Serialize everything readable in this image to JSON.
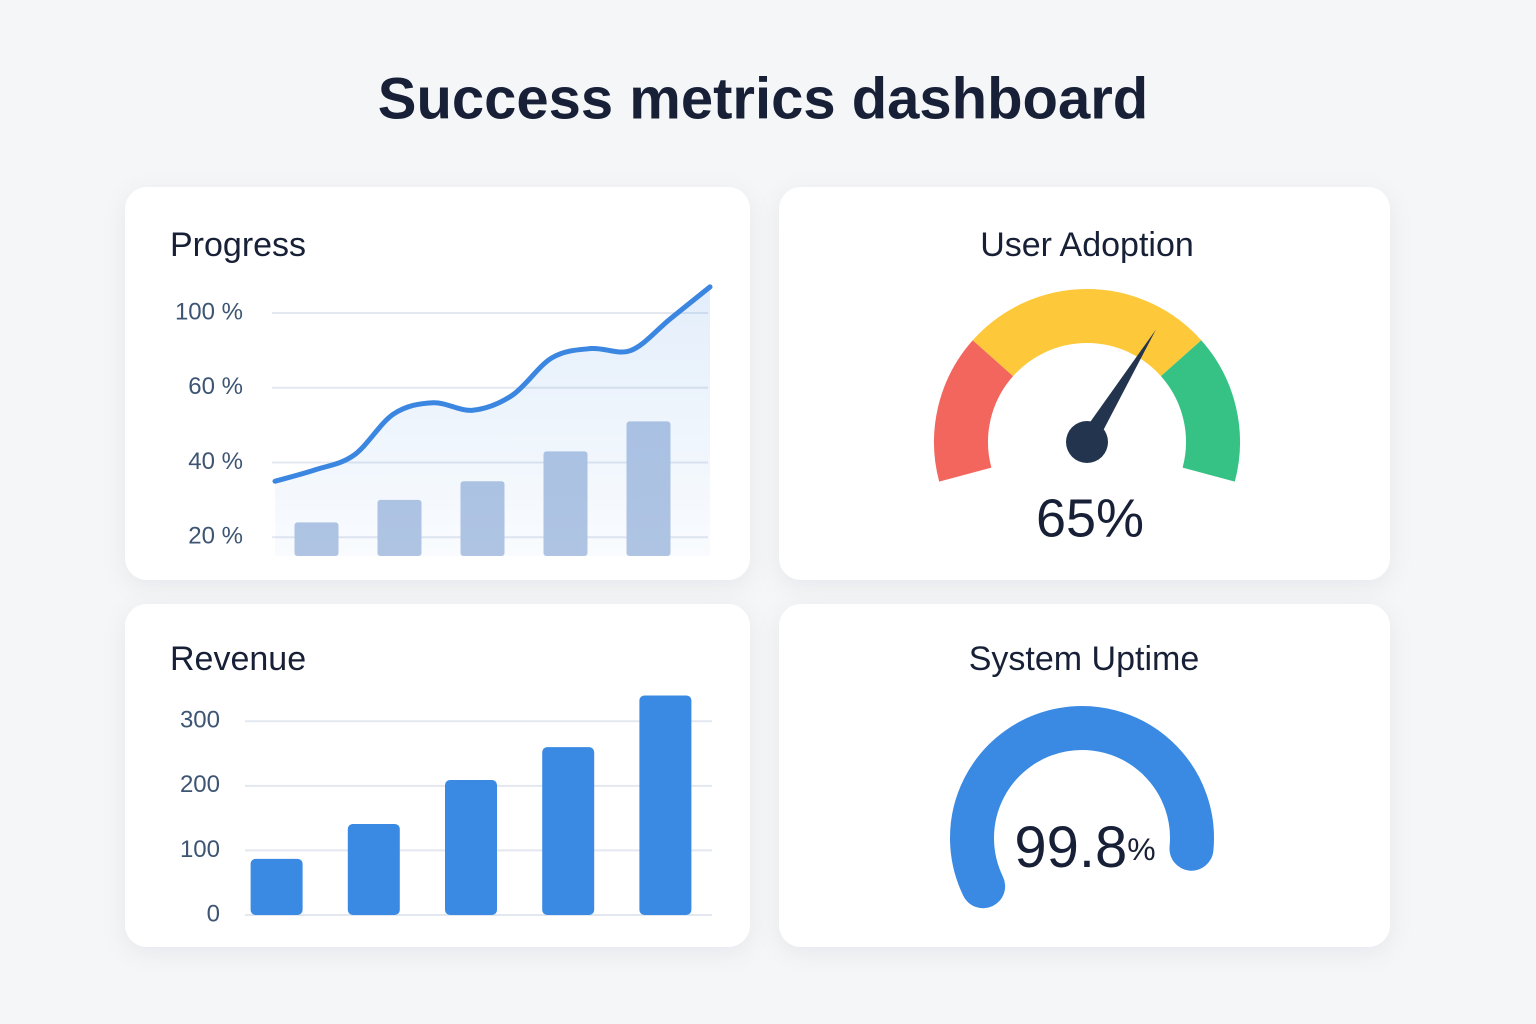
{
  "title": "Success metrics dashboard",
  "chart_data": [
    {
      "type": "line-bar",
      "title": "Progress",
      "scale": "piecewise",
      "grid": true,
      "ylim": [
        15,
        115
      ],
      "yticks": [
        {
          "value": 100,
          "label": "100 %"
        },
        {
          "value": 60,
          "label": "60 %"
        },
        {
          "value": 40,
          "label": "40 %"
        },
        {
          "value": 20,
          "label": "20 %"
        }
      ],
      "series": [
        {
          "kind": "bar",
          "color": "#b3c6e3",
          "values": [
            24,
            30,
            35,
            43,
            51
          ]
        },
        {
          "kind": "line",
          "color": "#3a86e0",
          "values": [
            35,
            38,
            42,
            53,
            56,
            54,
            58,
            76,
            81,
            80,
            97,
            114
          ]
        }
      ]
    },
    {
      "type": "gauge",
      "title": "User Adoption",
      "ylim": [
        0,
        100
      ],
      "value": 65,
      "value_label": "65%",
      "bands": [
        {
          "from": 0,
          "to": 27,
          "color": "#f2665e"
        },
        {
          "from": 27,
          "to": 73,
          "color": "#fdc93a"
        },
        {
          "from": 73,
          "to": 100,
          "color": "#37c285"
        }
      ],
      "needle_color": "#23344f"
    },
    {
      "type": "bar",
      "title": "Revenue",
      "grid": true,
      "ylim": [
        0,
        350
      ],
      "yticks": [
        300,
        200,
        100,
        0
      ],
      "values": [
        87,
        141,
        209,
        260,
        340
      ],
      "color": "#3a8ae3"
    },
    {
      "type": "gauge",
      "title": "System Uptime",
      "ylim": [
        0,
        100
      ],
      "value": 99.8,
      "value_label": "99.8%",
      "color": "#3a8ae3"
    }
  ]
}
